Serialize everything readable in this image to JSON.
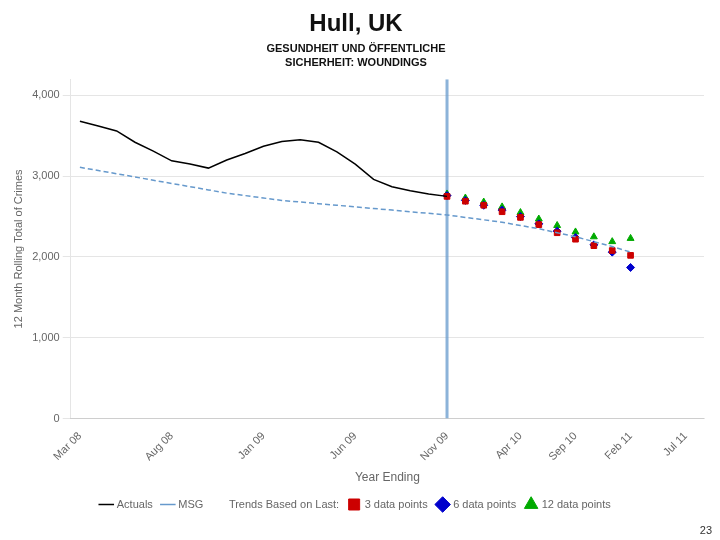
{
  "chart_data": {
    "type": "line",
    "title": "Hull, UK",
    "subtitle": [
      "GESUNDHEIT UND ÖFFENTLICHE",
      "SICHERHEIT: WOUNDINGS"
    ],
    "x_label": "Year Ending",
    "y_label": "12 Month Rolling Total of Crimes",
    "annotations": [
      "23"
    ],
    "legend_title": "Trends Based on Last:",
    "legend": "bottom",
    "grid": "y",
    "xlim": [
      -0.5,
      34
    ],
    "xticks": [
      {
        "value": 0,
        "label": "Mar 08"
      },
      {
        "value": 5,
        "label": "Aug 08"
      },
      {
        "value": 10,
        "label": "Jan 09"
      },
      {
        "value": 15,
        "label": "Jun 09"
      },
      {
        "value": 20,
        "label": "Nov 09"
      },
      {
        "value": 24,
        "label": "Apr 10"
      },
      {
        "value": 27,
        "label": "Sep 10"
      },
      {
        "value": 30,
        "label": "Feb 11"
      },
      {
        "value": 33,
        "label": "Jul 11"
      }
    ],
    "ylim": [
      0,
      4200
    ],
    "yticks": [
      0,
      {
        "value": 1000,
        "label": "1,000"
      },
      {
        "value": 2000,
        "label": "2,000"
      },
      {
        "value": 3000,
        "label": "3,000"
      },
      {
        "value": 4000,
        "label": "4,000"
      }
    ],
    "vline": {
      "x": 20,
      "color": "#6699cc"
    },
    "series": [
      {
        "name": "Actuals",
        "type": "line",
        "color": "#000000",
        "line_style": "solid",
        "x": [
          0,
          1,
          2,
          3,
          4,
          5,
          6,
          7,
          8,
          9,
          10,
          11,
          12,
          13,
          14,
          15,
          16,
          17,
          18,
          19,
          20
        ],
        "values": [
          3680,
          3620,
          3560,
          3420,
          3310,
          3190,
          3150,
          3100,
          3200,
          3280,
          3370,
          3430,
          3450,
          3420,
          3300,
          3150,
          2960,
          2870,
          2820,
          2780,
          2750
        ]
      },
      {
        "name": "MSG",
        "type": "line",
        "color": "#6699cc",
        "line_style": "dashed",
        "x": [
          0,
          1,
          2,
          3,
          4,
          5,
          6,
          7,
          8,
          9,
          10,
          11,
          12,
          13,
          14,
          15,
          16,
          17,
          18,
          19,
          20,
          21,
          22,
          23,
          24,
          25,
          26,
          27,
          28,
          29,
          30
        ],
        "values": [
          3110,
          3070,
          3030,
          2990,
          2950,
          2910,
          2870,
          2830,
          2790,
          2760,
          2730,
          2700,
          2680,
          2660,
          2640,
          2620,
          2600,
          2580,
          2560,
          2540,
          2520,
          2490,
          2460,
          2430,
          2390,
          2350,
          2300,
          2250,
          2190,
          2130,
          2060
        ]
      },
      {
        "name": "3 data points",
        "type": "scatter",
        "color": "#cc0000",
        "marker": "square",
        "line_style": "none",
        "x": [
          20,
          21,
          22,
          23,
          24,
          25,
          26,
          27,
          28,
          29,
          30
        ],
        "values": [
          2750,
          2690,
          2640,
          2560,
          2490,
          2400,
          2300,
          2220,
          2140,
          2080,
          2020
        ]
      },
      {
        "name": "6 data points",
        "type": "scatter",
        "color": "#0000cc",
        "marker": "diamond",
        "line_style": "none",
        "x": [
          20,
          21,
          22,
          23,
          24,
          25,
          26,
          27,
          28,
          29,
          30
        ],
        "values": [
          2760,
          2700,
          2640,
          2580,
          2500,
          2410,
          2320,
          2240,
          2150,
          2060,
          1870
        ]
      },
      {
        "name": "12 data points",
        "type": "scatter",
        "color": "#00aa00",
        "marker": "triangle",
        "line_style": "none",
        "x": [
          20,
          21,
          22,
          23,
          24,
          25,
          26,
          27,
          28,
          29,
          30
        ],
        "values": [
          2780,
          2730,
          2680,
          2620,
          2550,
          2470,
          2390,
          2310,
          2250,
          2190,
          2230
        ]
      }
    ]
  }
}
